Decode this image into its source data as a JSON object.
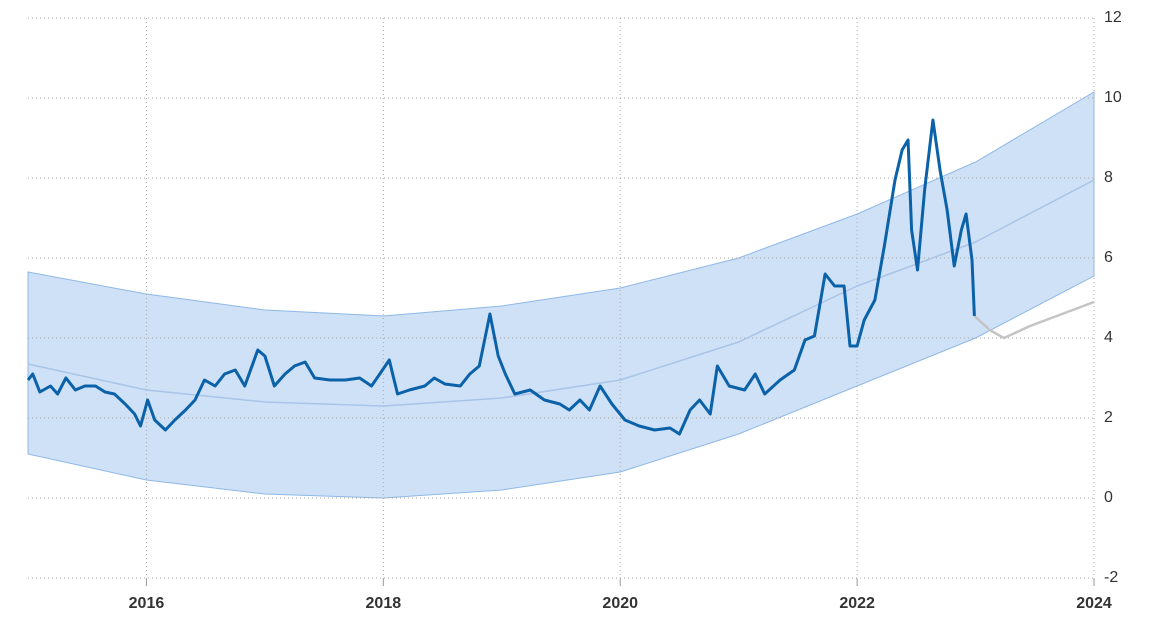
{
  "chart_data": {
    "type": "line",
    "xlim": [
      2015,
      2024
    ],
    "xticks": [
      2016,
      2018,
      2020,
      2022,
      2024
    ],
    "ylim": [
      -2,
      12
    ],
    "yticks": [
      -2,
      0,
      2,
      4,
      6,
      8,
      10,
      12
    ],
    "grid": true,
    "band": {
      "color": "#c5dcf5",
      "x": [
        2015,
        2016,
        2017,
        2018,
        2019,
        2020,
        2021,
        2022,
        2023,
        2024
      ],
      "upper": [
        5.65,
        5.1,
        4.7,
        4.55,
        4.8,
        5.25,
        6.0,
        7.1,
        8.4,
        10.15
      ],
      "lower": [
        1.1,
        0.45,
        0.1,
        0,
        0.2,
        0.65,
        1.6,
        2.8,
        4.0,
        5.55
      ]
    },
    "series": [
      {
        "color": "#0b62a8",
        "x": [
          2015.0,
          2015.04,
          2015.1,
          2015.19,
          2015.25,
          2015.32,
          2015.4,
          2015.48,
          2015.57,
          2015.65,
          2015.73,
          2015.82,
          2015.9,
          2015.95,
          2016.01,
          2016.07,
          2016.16,
          2016.24,
          2016.33,
          2016.41,
          2016.49,
          2016.58,
          2016.66,
          2016.75,
          2016.83,
          2016.94,
          2017.0,
          2017.08,
          2017.17,
          2017.25,
          2017.34,
          2017.42,
          2017.55,
          2017.68,
          2017.8,
          2017.9,
          2017.97,
          2018.05,
          2018.12,
          2018.22,
          2018.35,
          2018.43,
          2018.52,
          2018.65,
          2018.73,
          2018.81,
          2018.9,
          2018.97,
          2019.03,
          2019.11,
          2019.24,
          2019.36,
          2019.49,
          2019.57,
          2019.66,
          2019.74,
          2019.83,
          2019.93,
          2020.04,
          2020.16,
          2020.29,
          2020.42,
          2020.5,
          2020.59,
          2020.67,
          2020.76,
          2020.82,
          2020.92,
          2021.05,
          2021.14,
          2021.22,
          2021.35,
          2021.47,
          2021.56,
          2021.64,
          2021.73,
          2021.81,
          2021.89,
          2021.94,
          2022.0,
          2022.06,
          2022.15,
          2022.23,
          2022.32,
          2022.38,
          2022.43,
          2022.46,
          2022.51,
          2022.57,
          2022.64,
          2022.7,
          2022.76,
          2022.82,
          2022.88,
          2022.92,
          2022.97,
          2022.99
        ],
        "values": [
          2.95,
          3.1,
          2.65,
          2.8,
          2.6,
          3.0,
          2.7,
          2.8,
          2.8,
          2.65,
          2.6,
          2.35,
          2.1,
          1.8,
          2.45,
          1.95,
          1.7,
          1.95,
          2.2,
          2.45,
          2.95,
          2.8,
          3.1,
          3.2,
          2.8,
          3.7,
          3.55,
          2.8,
          3.1,
          3.3,
          3.4,
          3.0,
          2.95,
          2.95,
          3.0,
          2.8,
          3.1,
          3.45,
          2.6,
          2.7,
          2.8,
          3.0,
          2.85,
          2.8,
          3.1,
          3.3,
          4.6,
          3.55,
          3.1,
          2.6,
          2.7,
          2.45,
          2.35,
          2.2,
          2.45,
          2.2,
          2.8,
          2.35,
          1.95,
          1.8,
          1.7,
          1.75,
          1.6,
          2.2,
          2.45,
          2.1,
          3.3,
          2.8,
          2.7,
          3.1,
          2.6,
          2.95,
          3.2,
          3.95,
          4.05,
          5.6,
          5.3,
          5.3,
          3.8,
          3.8,
          4.45,
          4.95,
          6.3,
          7.95,
          8.7,
          8.95,
          6.7,
          5.7,
          7.7,
          9.45,
          8.2,
          7.2,
          5.8,
          6.7,
          7.1,
          5.95,
          4.55
        ]
      },
      {
        "color": "#c4c4c4",
        "x": [
          2022.99,
          2023.12,
          2023.24,
          2023.46,
          2024.0
        ],
        "values": [
          4.55,
          4.2,
          4.0,
          4.3,
          4.9
        ]
      },
      {
        "color": "#a9c4e6",
        "x": [
          2015,
          2016,
          2017,
          2018,
          2019,
          2020,
          2021,
          2022,
          2023,
          2024
        ],
        "values": [
          3.35,
          2.7,
          2.4,
          2.3,
          2.5,
          2.95,
          3.9,
          5.3,
          6.4,
          7.95
        ]
      }
    ]
  }
}
